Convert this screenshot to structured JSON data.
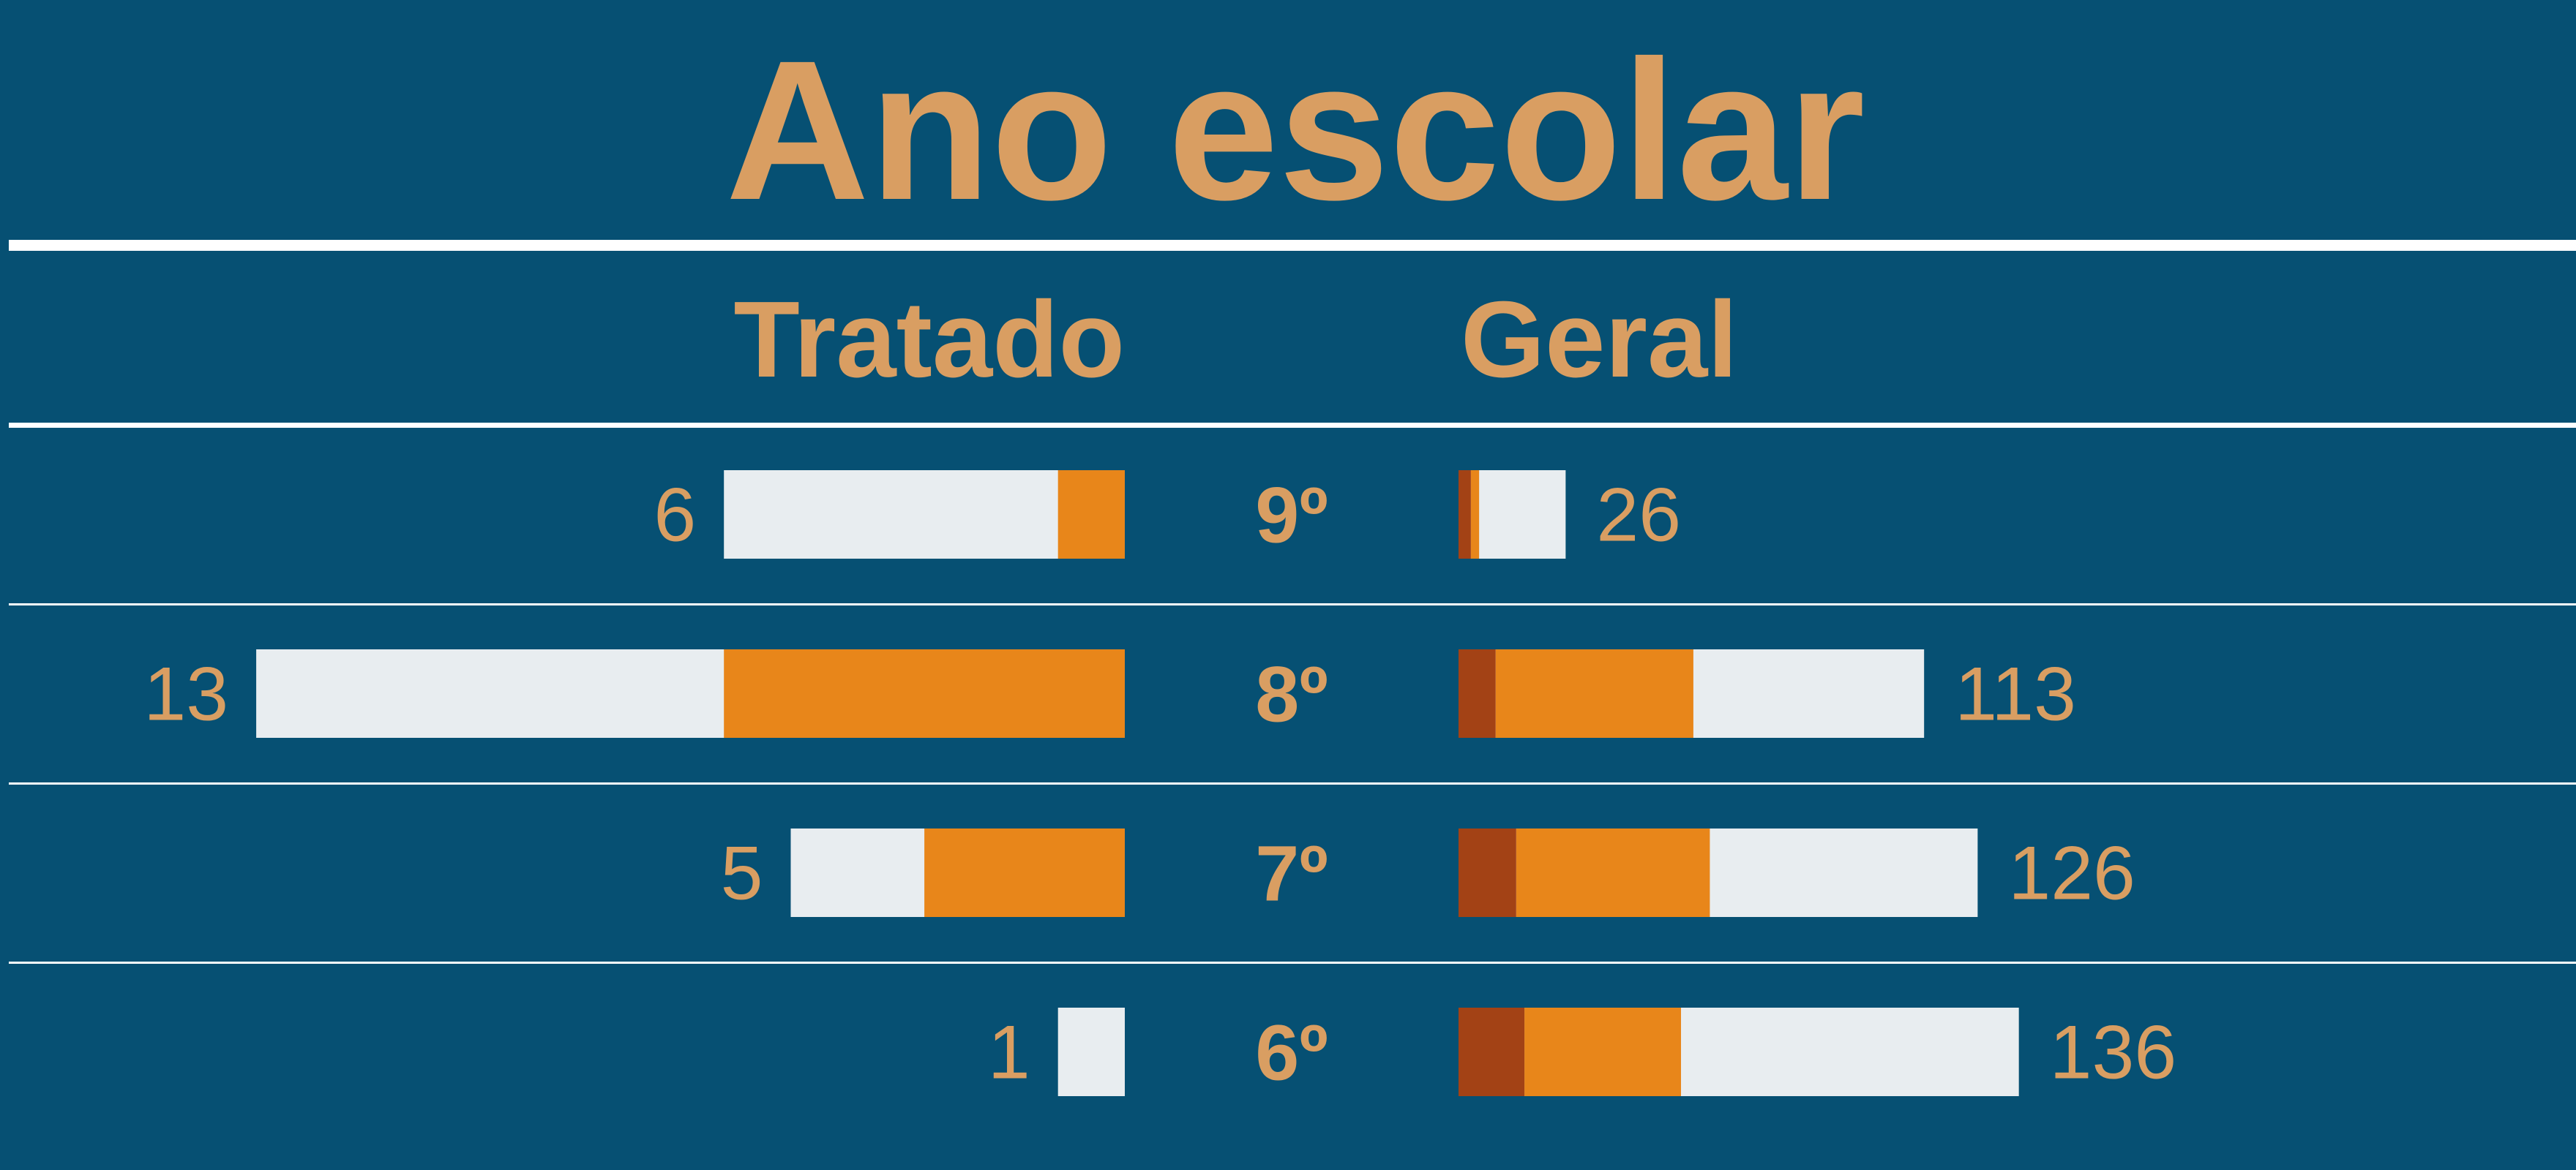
{
  "chart_data": {
    "type": "bar",
    "title": "Ano escolar",
    "left_header": "Tratado",
    "right_header": "Geral",
    "categories": [
      "9º",
      "8º",
      "7º",
      "6º"
    ],
    "left_totals": [
      6,
      13,
      5,
      1
    ],
    "right_totals": [
      26,
      113,
      126,
      136
    ],
    "left_orange": [
      1,
      6,
      3,
      0
    ],
    "right_dark": [
      3,
      9,
      14,
      16
    ],
    "right_orange": [
      2,
      48,
      47,
      38
    ],
    "colors": {
      "background": "#065073",
      "text": "#D99E62",
      "light": "#E8EDF0",
      "orange": "#E8861A",
      "dark": "#A34215",
      "rule": "#FFFFFF"
    }
  }
}
